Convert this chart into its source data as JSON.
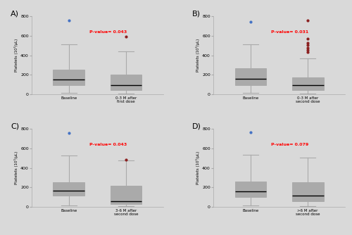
{
  "figure_bg": "#d9d9d9",
  "axes_bg": "#d9d9d9",
  "panel_labels": [
    "A)",
    "B)",
    "C)",
    "D)"
  ],
  "pvalues": [
    "P-value= 0.043",
    "P-value= 0.031",
    "P-value= 0.043",
    "P-value= 0.079"
  ],
  "xlabels": [
    [
      "Baseline",
      "0-3 M after\nfirst dose"
    ],
    [
      "Baseline",
      "0-3 M after\nsecond dose"
    ],
    [
      "Baseline",
      "3-6 M after\nsecond dose"
    ],
    [
      "Baseline",
      ">6 M after\nsecond dose"
    ]
  ],
  "ylabel": "Platelets (10³/μL)",
  "ylim": [
    0,
    800
  ],
  "yticks": [
    0,
    200,
    400,
    600,
    800
  ],
  "blue_color": "#4472C4",
  "red_color": "#8B2020",
  "whisker_color": "#aaaaaa",
  "box_A": {
    "blue": {
      "q1": 90,
      "median": 150,
      "q3": 255,
      "whislo": 12,
      "whishi": 510,
      "fliers": [
        760
      ]
    },
    "red": {
      "q1": 40,
      "median": 90,
      "q3": 200,
      "whislo": 5,
      "whishi": 440,
      "fliers": [
        590
      ]
    }
  },
  "box_B": {
    "blue": {
      "q1": 95,
      "median": 155,
      "q3": 265,
      "whislo": 12,
      "whishi": 510,
      "fliers": [
        745
      ]
    },
    "red": {
      "q1": 40,
      "median": 95,
      "q3": 175,
      "whislo": 8,
      "whishi": 365,
      "fliers": [
        435,
        458,
        478,
        508,
        530,
        572,
        760
      ]
    }
  },
  "box_C": {
    "blue": {
      "q1": 115,
      "median": 165,
      "q3": 250,
      "whislo": 12,
      "whishi": 530,
      "fliers": [
        760
      ]
    },
    "red": {
      "q1": 25,
      "median": 60,
      "q3": 220,
      "whislo": 4,
      "whishi": 475,
      "fliers": [
        482
      ]
    }
  },
  "box_D": {
    "blue": {
      "q1": 100,
      "median": 160,
      "q3": 260,
      "whislo": 15,
      "whishi": 535,
      "fliers": [
        765
      ]
    },
    "red": {
      "q1": 55,
      "median": 115,
      "q3": 255,
      "whislo": 10,
      "whishi": 510,
      "fliers": []
    }
  }
}
